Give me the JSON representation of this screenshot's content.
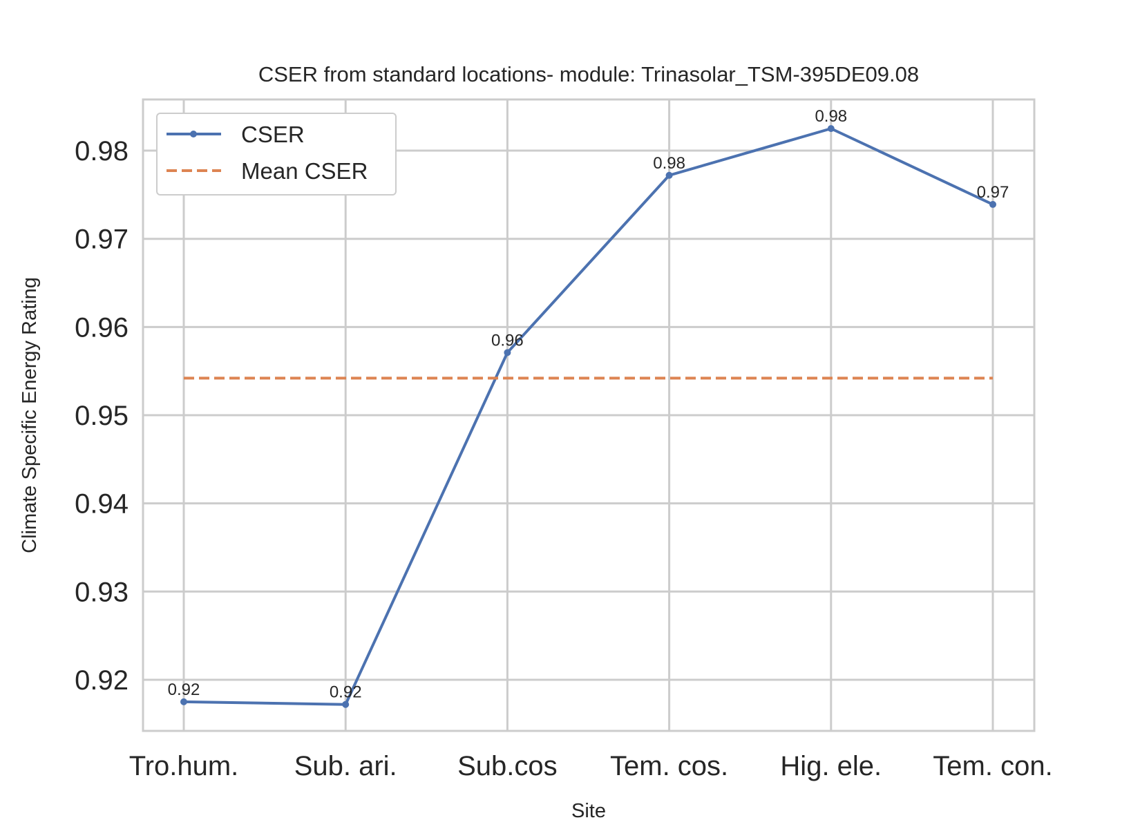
{
  "chart_data": {
    "type": "line",
    "title": "CSER from standard locations- module: Trinasolar_TSM-395DE09.08",
    "xlabel": "Site",
    "ylabel": "Climate Specific Energy Rating",
    "categories": [
      "Tro.hum.",
      "Sub. ari.",
      "Sub.cos",
      "Tem. cos.",
      "Hig. ele.",
      "Tem. con."
    ],
    "ylim": [
      0.9142,
      0.9858
    ],
    "yticks": [
      0.92,
      0.93,
      0.94,
      0.95,
      0.96,
      0.97,
      0.98
    ],
    "ytick_labels": [
      "0.92",
      "0.93",
      "0.94",
      "0.95",
      "0.96",
      "0.97",
      "0.98"
    ],
    "grid": true,
    "legend_position": "top-left",
    "series": [
      {
        "name": "CSER",
        "color": "#4c72b0",
        "style": "solid",
        "marker": "circle",
        "values": [
          0.9175,
          0.9172,
          0.9571,
          0.9772,
          0.9825,
          0.9739
        ],
        "labels": [
          "0.92",
          "0.92",
          "0.96",
          "0.98",
          "0.98",
          "0.97"
        ]
      },
      {
        "name": "Mean CSER",
        "color": "#dd8452",
        "style": "dashed",
        "values": [
          0.9542,
          0.9542,
          0.9542,
          0.9542,
          0.9542,
          0.9542
        ]
      }
    ]
  }
}
